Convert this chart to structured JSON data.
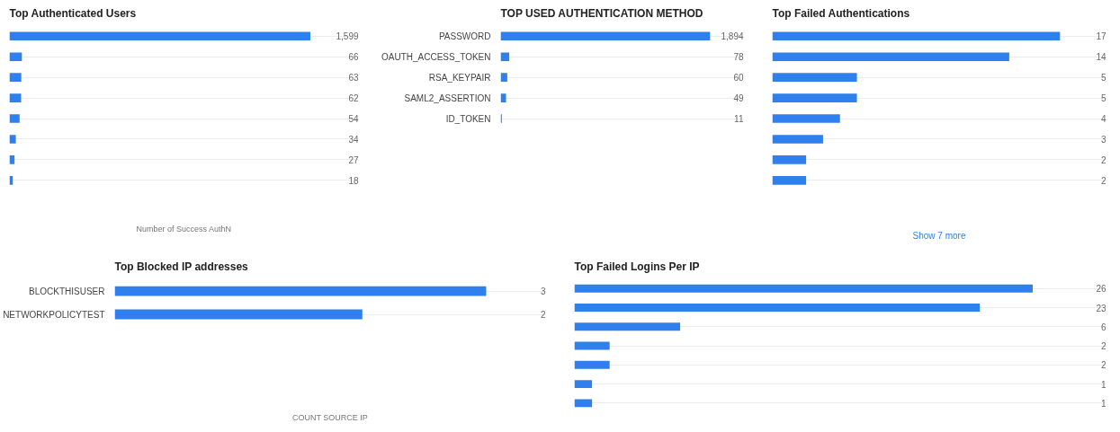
{
  "chart_data": [
    {
      "type": "bar",
      "orientation": "horizontal",
      "title": "Top Authenticated Users",
      "xlabel": "Number of Success AuthN",
      "categories": [
        null,
        null,
        null,
        null,
        null,
        null,
        null,
        null
      ],
      "values": [
        1599,
        66,
        63,
        62,
        54,
        34,
        27,
        18
      ],
      "value_labels": [
        "1,599",
        "66",
        "63",
        "62",
        "54",
        "34",
        "27",
        "18"
      ],
      "color": "#2f80ed",
      "grid": "y",
      "tick_labels": "y"
    },
    {
      "type": "bar",
      "orientation": "horizontal",
      "title": "TOP USED AUTHENTICATION METHOD",
      "categories": [
        "PASSWORD",
        "OAUTH_ACCESS_TOKEN",
        "RSA_KEYPAIR",
        "SAML2_ASSERTION",
        "ID_TOKEN"
      ],
      "values": [
        1894,
        78,
        60,
        49,
        11
      ],
      "value_labels": [
        "1,894",
        "78",
        "60",
        "49",
        "11"
      ],
      "color": "#2f80ed",
      "grid": "y",
      "tick_labels": "y"
    },
    {
      "type": "bar",
      "orientation": "horizontal",
      "title": "Top Failed Authentications",
      "categories": [
        null,
        null,
        null,
        null,
        null,
        null,
        null,
        null
      ],
      "values": [
        17,
        14,
        5,
        5,
        4,
        3,
        2,
        2
      ],
      "data_labels": true,
      "color": "#2f80ed",
      "grid": "y",
      "tick_labels": "y",
      "annotations": [
        "Show 7 more"
      ]
    },
    {
      "type": "bar",
      "orientation": "horizontal",
      "title": "Top Blocked IP addresses",
      "xlabel": "COUNT SOURCE IP",
      "categories": [
        "BLOCKTHISUSER",
        "NETWORKPOLICYTEST"
      ],
      "values": [
        3,
        2
      ],
      "data_labels": true,
      "color": "#2f80ed",
      "grid": "y",
      "tick_labels": "y"
    },
    {
      "type": "bar",
      "orientation": "horizontal",
      "title": "Top Failed Logins Per IP",
      "categories": [
        null,
        null,
        null,
        null,
        null,
        null,
        null
      ],
      "values": [
        26,
        23,
        6,
        2,
        2,
        1,
        1
      ],
      "data_labels": true,
      "color": "#2f80ed",
      "grid": "y",
      "tick_labels": "y"
    }
  ]
}
